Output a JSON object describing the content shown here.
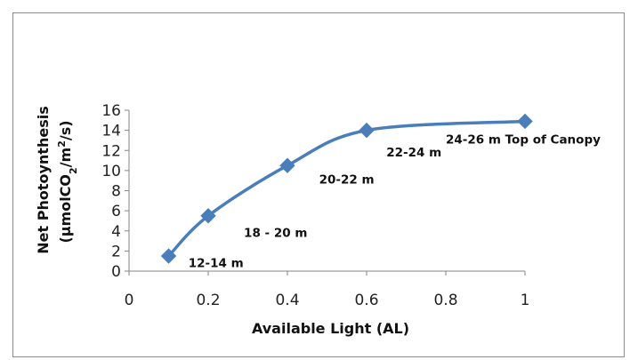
{
  "chart_data": {
    "type": "line",
    "xlabel": "Available Light (AL)",
    "ylabel_line1": "Net Photoynthesis",
    "ylabel_line2_parts": [
      "(μmolCO",
      "2",
      "/m",
      "2",
      "/s)"
    ],
    "x_ticks": [
      "0",
      "0.2",
      "0.4",
      "0.6",
      "0.8",
      "1"
    ],
    "y_ticks": [
      "0",
      "2",
      "4",
      "6",
      "8",
      "10",
      "12",
      "14",
      "16"
    ],
    "xlim": [
      0,
      1
    ],
    "ylim": [
      0,
      16
    ],
    "grid": false,
    "series": [
      {
        "color": "#4a7ebb",
        "marker": "diamond",
        "smooth": true,
        "x": [
          0.1,
          0.2,
          0.4,
          0.6,
          1.0
        ],
        "y": [
          1.5,
          5.5,
          10.5,
          14.0,
          14.9
        ]
      }
    ],
    "annotations": [
      {
        "text": "12-14 m",
        "x": 0.15,
        "y": 0.4
      },
      {
        "text": "18 - 20 m",
        "x": 0.29,
        "y": 3.4
      },
      {
        "text": "20-22 m",
        "x": 0.48,
        "y": 8.7
      },
      {
        "text": "22-24 m",
        "x": 0.65,
        "y": 11.4
      },
      {
        "text": "24-26 m Top of Canopy",
        "x": 0.8,
        "y": 12.7
      }
    ]
  }
}
